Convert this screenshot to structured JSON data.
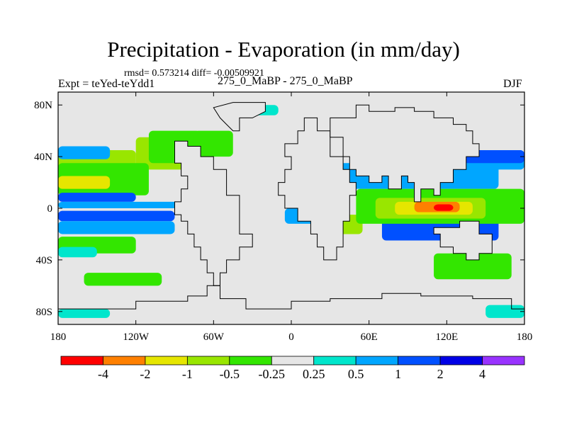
{
  "chart_data": {
    "type": "heatmap",
    "title": "Precipitation - Evaporation (in mm/day)",
    "stats": "rmsd= 0.573214 diff= -0.00509921",
    "experiment": "Expt = teYed-teYdd1",
    "subtitle": "275_0_MaBP - 275_0_MaBP",
    "season": "DJF",
    "xlim": [
      -180,
      180
    ],
    "ylim": [
      -90,
      90
    ],
    "x_ticks": [
      {
        "lon": -180,
        "label": "180"
      },
      {
        "lon": -120,
        "label": "120W"
      },
      {
        "lon": -60,
        "label": "60W"
      },
      {
        "lon": 0,
        "label": "0"
      },
      {
        "lon": 60,
        "label": "60E"
      },
      {
        "lon": 120,
        "label": "120E"
      },
      {
        "lon": 180,
        "label": "180"
      }
    ],
    "y_ticks": [
      {
        "lat": 80,
        "label": "80N"
      },
      {
        "lat": 40,
        "label": "40N"
      },
      {
        "lat": 0,
        "label": "0"
      },
      {
        "lat": -40,
        "label": "40S"
      },
      {
        "lat": -80,
        "label": "80S"
      }
    ],
    "colorbar": {
      "labels": [
        "-4",
        "-2",
        "-1",
        "-0.5",
        "-0.25",
        "0.25",
        "0.5",
        "1",
        "2",
        "4"
      ],
      "colors": [
        "#ff0000",
        "#ff8000",
        "#e6e600",
        "#99e600",
        "#33e600",
        "#e6e6e6",
        "#00e6cc",
        "#00a6ff",
        "#0050ff",
        "#0000e6",
        "#9933ff"
      ]
    },
    "background_color": "#e6e6e6",
    "regions": [
      {
        "level": 3,
        "lon": [
          -180,
          -120
        ],
        "lat": [
          25,
          45
        ]
      },
      {
        "level": 3,
        "lon": [
          -120,
          -60
        ],
        "lat": [
          30,
          55
        ]
      },
      {
        "level": 4,
        "lon": [
          -180,
          -110
        ],
        "lat": [
          10,
          35
        ]
      },
      {
        "level": 4,
        "lon": [
          -110,
          -70
        ],
        "lat": [
          35,
          60
        ]
      },
      {
        "level": 4,
        "lon": [
          -75,
          -45
        ],
        "lat": [
          40,
          60
        ]
      },
      {
        "level": 2,
        "lon": [
          -180,
          -140
        ],
        "lat": [
          15,
          25
        ]
      },
      {
        "level": 7,
        "lon": [
          -180,
          -140
        ],
        "lat": [
          38,
          48
        ]
      },
      {
        "level": 8,
        "lon": [
          -180,
          -120
        ],
        "lat": [
          5,
          12
        ]
      },
      {
        "level": 7,
        "lon": [
          -180,
          -70
        ],
        "lat": [
          0,
          5
        ]
      },
      {
        "level": 8,
        "lon": [
          -180,
          -90
        ],
        "lat": [
          -10,
          -2
        ]
      },
      {
        "level": 7,
        "lon": [
          -180,
          -90
        ],
        "lat": [
          -20,
          -10
        ]
      },
      {
        "level": 4,
        "lon": [
          -180,
          -120
        ],
        "lat": [
          -35,
          -22
        ]
      },
      {
        "level": 6,
        "lon": [
          -180,
          -150
        ],
        "lat": [
          -38,
          -30
        ]
      },
      {
        "level": 4,
        "lon": [
          -160,
          -100
        ],
        "lat": [
          -60,
          -50
        ]
      },
      {
        "level": 6,
        "lon": [
          -180,
          -140
        ],
        "lat": [
          -85,
          -78
        ]
      },
      {
        "level": 7,
        "lon": [
          -5,
          30
        ],
        "lat": [
          -12,
          0
        ]
      },
      {
        "level": 3,
        "lon": [
          20,
          55
        ],
        "lat": [
          -20,
          -5
        ]
      },
      {
        "level": 7,
        "lon": [
          35,
          160
        ],
        "lat": [
          15,
          35
        ]
      },
      {
        "level": 8,
        "lon": [
          70,
          160
        ],
        "lat": [
          -25,
          10
        ]
      },
      {
        "level": 4,
        "lon": [
          50,
          180
        ],
        "lat": [
          -12,
          15
        ]
      },
      {
        "level": 3,
        "lon": [
          65,
          150
        ],
        "lat": [
          -8,
          8
        ]
      },
      {
        "level": 2,
        "lon": [
          80,
          140
        ],
        "lat": [
          -5,
          5
        ]
      },
      {
        "level": 1,
        "lon": [
          95,
          130
        ],
        "lat": [
          -3,
          5
        ]
      },
      {
        "level": 0,
        "lon": [
          110,
          125
        ],
        "lat": [
          -2,
          3
        ]
      },
      {
        "level": 7,
        "lon": [
          80,
          180
        ],
        "lat": [
          30,
          45
        ]
      },
      {
        "level": 8,
        "lon": [
          110,
          180
        ],
        "lat": [
          35,
          45
        ]
      },
      {
        "level": 4,
        "lon": [
          110,
          170
        ],
        "lat": [
          -55,
          -35
        ]
      },
      {
        "level": 6,
        "lon": [
          150,
          180
        ],
        "lat": [
          -85,
          -75
        ]
      },
      {
        "level": 6,
        "lon": [
          -30,
          -10
        ],
        "lat": [
          72,
          80
        ]
      }
    ],
    "continents": [
      [
        [
          -90,
          52
        ],
        [
          -80,
          52
        ],
        [
          -80,
          48
        ],
        [
          -70,
          48
        ],
        [
          -70,
          40
        ],
        [
          -60,
          40
        ],
        [
          -60,
          30
        ],
        [
          -50,
          30
        ],
        [
          -50,
          10
        ],
        [
          -40,
          10
        ],
        [
          -40,
          -20
        ],
        [
          -30,
          -20
        ],
        [
          -30,
          -30
        ],
        [
          -40,
          -30
        ],
        [
          -40,
          -40
        ],
        [
          -50,
          -40
        ],
        [
          -50,
          -50
        ],
        [
          -55,
          -50
        ],
        [
          -55,
          -60
        ],
        [
          -60,
          -60
        ],
        [
          -60,
          -50
        ],
        [
          -65,
          -50
        ],
        [
          -65,
          -40
        ],
        [
          -70,
          -40
        ],
        [
          -70,
          -30
        ],
        [
          -75,
          -30
        ],
        [
          -75,
          -20
        ],
        [
          -80,
          -20
        ],
        [
          -80,
          -10
        ],
        [
          -85,
          -10
        ],
        [
          -85,
          -5
        ],
        [
          -90,
          -5
        ],
        [
          -90,
          5
        ],
        [
          -85,
          5
        ],
        [
          -85,
          15
        ],
        [
          -80,
          15
        ],
        [
          -80,
          25
        ],
        [
          -85,
          25
        ],
        [
          -85,
          35
        ],
        [
          -90,
          35
        ],
        [
          -90,
          52
        ]
      ],
      [
        [
          10,
          70
        ],
        [
          20,
          70
        ],
        [
          20,
          60
        ],
        [
          30,
          60
        ],
        [
          30,
          40
        ],
        [
          40,
          40
        ],
        [
          40,
          30
        ],
        [
          45,
          30
        ],
        [
          45,
          20
        ],
        [
          50,
          20
        ],
        [
          50,
          10
        ],
        [
          45,
          10
        ],
        [
          45,
          -10
        ],
        [
          40,
          -10
        ],
        [
          40,
          -30
        ],
        [
          35,
          -30
        ],
        [
          35,
          -40
        ],
        [
          25,
          -40
        ],
        [
          25,
          -30
        ],
        [
          20,
          -30
        ],
        [
          20,
          -20
        ],
        [
          15,
          -20
        ],
        [
          15,
          -10
        ],
        [
          5,
          -10
        ],
        [
          5,
          0
        ],
        [
          -5,
          0
        ],
        [
          -5,
          10
        ],
        [
          -10,
          10
        ],
        [
          -10,
          20
        ],
        [
          -5,
          20
        ],
        [
          -5,
          30
        ],
        [
          0,
          30
        ],
        [
          0,
          40
        ],
        [
          -5,
          40
        ],
        [
          -5,
          50
        ],
        [
          5,
          50
        ],
        [
          5,
          60
        ],
        [
          10,
          60
        ],
        [
          10,
          70
        ]
      ],
      [
        [
          30,
          70
        ],
        [
          50,
          70
        ],
        [
          50,
          80
        ],
        [
          60,
          80
        ],
        [
          60,
          75
        ],
        [
          80,
          75
        ],
        [
          80,
          78
        ],
        [
          95,
          78
        ],
        [
          95,
          75
        ],
        [
          110,
          75
        ],
        [
          110,
          70
        ],
        [
          125,
          70
        ],
        [
          125,
          65
        ],
        [
          135,
          65
        ],
        [
          135,
          60
        ],
        [
          140,
          60
        ],
        [
          140,
          50
        ],
        [
          145,
          50
        ],
        [
          145,
          40
        ],
        [
          135,
          40
        ],
        [
          135,
          30
        ],
        [
          125,
          30
        ],
        [
          125,
          20
        ],
        [
          115,
          20
        ],
        [
          115,
          10
        ],
        [
          110,
          10
        ],
        [
          110,
          15
        ],
        [
          100,
          15
        ],
        [
          100,
          5
        ],
        [
          95,
          5
        ],
        [
          95,
          20
        ],
        [
          90,
          20
        ],
        [
          90,
          25
        ],
        [
          85,
          25
        ],
        [
          85,
          15
        ],
        [
          75,
          15
        ],
        [
          75,
          25
        ],
        [
          70,
          25
        ],
        [
          70,
          20
        ],
        [
          60,
          20
        ],
        [
          60,
          25
        ],
        [
          50,
          25
        ],
        [
          50,
          30
        ],
        [
          45,
          30
        ],
        [
          45,
          40
        ],
        [
          40,
          40
        ],
        [
          40,
          55
        ],
        [
          30,
          55
        ],
        [
          30,
          70
        ]
      ],
      [
        [
          110,
          -15
        ],
        [
          130,
          -15
        ],
        [
          130,
          -10
        ],
        [
          145,
          -10
        ],
        [
          145,
          -20
        ],
        [
          155,
          -20
        ],
        [
          155,
          -35
        ],
        [
          145,
          -35
        ],
        [
          145,
          -40
        ],
        [
          135,
          -40
        ],
        [
          135,
          -35
        ],
        [
          125,
          -35
        ],
        [
          125,
          -30
        ],
        [
          115,
          -30
        ],
        [
          115,
          -20
        ],
        [
          110,
          -20
        ],
        [
          110,
          -15
        ]
      ],
      [
        [
          -180,
          -78
        ],
        [
          -120,
          -78
        ],
        [
          -120,
          -72
        ],
        [
          -80,
          -72
        ],
        [
          -80,
          -68
        ],
        [
          -65,
          -68
        ],
        [
          -65,
          -60
        ],
        [
          -55,
          -60
        ],
        [
          -55,
          -70
        ],
        [
          -35,
          -70
        ],
        [
          -35,
          -78
        ],
        [
          0,
          -78
        ],
        [
          0,
          -72
        ],
        [
          30,
          -72
        ],
        [
          30,
          -70
        ],
        [
          70,
          -70
        ],
        [
          70,
          -66
        ],
        [
          100,
          -66
        ],
        [
          100,
          -68
        ],
        [
          140,
          -68
        ],
        [
          140,
          -70
        ],
        [
          170,
          -70
        ],
        [
          170,
          -78
        ],
        [
          180,
          -78
        ]
      ],
      [
        [
          -45,
          60
        ],
        [
          -40,
          60
        ],
        [
          -40,
          70
        ],
        [
          -30,
          70
        ],
        [
          -20,
          75
        ],
        [
          -20,
          82
        ],
        [
          -45,
          82
        ],
        [
          -60,
          78
        ],
        [
          -55,
          70
        ],
        [
          -50,
          65
        ],
        [
          -45,
          60
        ]
      ]
    ]
  }
}
